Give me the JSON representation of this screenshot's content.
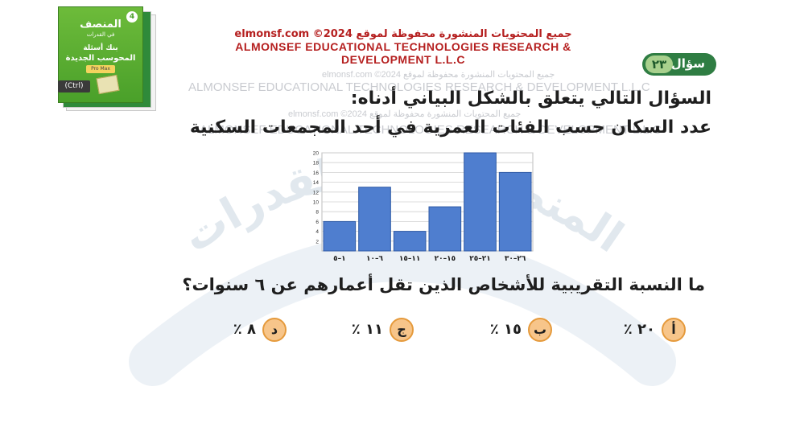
{
  "watermark": {
    "line1": "جميع المحتويات المنشورة محفوظة لموقع  elmonsf.com  ©2024",
    "line2": "ALMONSEF EDUCATIONAL TECHNOLOGIES RESEARCH & DEVELOPMENT L.L.C",
    "line3": "جميع المحتويات المنشورة محفوظة لموقع  elmonsf.com  ©2024",
    "line4": "ALMONSEF EDUCATIONAL TECHNOLOGIES RESEARCH & DEVELOPMENT L.L.C",
    "arc_text": "المنصف في القدرات"
  },
  "book": {
    "title": "المنصف",
    "subtitle": "في القدرات",
    "line3": "بنك أسئلة",
    "line4": "المحوسب الجديدة",
    "badge": "4",
    "ribbon": "Pro Max"
  },
  "ctrl_chip": "(Ctrl)",
  "header": {
    "line1": "جميع المحتويات المنشورة محفوظة لموقع  elmonsf.com  ©2024",
    "line2": "ALMONSEF EDUCATIONAL TECHNOLOGIES RESEARCH &",
    "line3": "DEVELOPMENT L.L.C"
  },
  "question_badge": {
    "label": "سؤال",
    "number": "٢٣"
  },
  "heading1": "السؤال التالي يتعلق بالشكل البياني أدناه:",
  "heading2": "عدد السكان حسب الفئات العمرية في أحد المجمعات السكنية",
  "question": "ما النسبة التقريبية للأشخاص الذين تقل أعمارهم عن ٦ سنوات؟",
  "options": [
    {
      "letter": "أ",
      "value": "٢٠ ٪"
    },
    {
      "letter": "ب",
      "value": "١٥ ٪"
    },
    {
      "letter": "ج",
      "value": "١١ ٪"
    },
    {
      "letter": "د",
      "value": "٨ ٪"
    }
  ],
  "colors": {
    "bar": "#4f7ecf",
    "bar_dark": "#2f5aa6",
    "badge": "#2f7d43",
    "option_circle": "#f7c58a"
  },
  "chart_data": {
    "type": "bar",
    "categories": [
      "١–٥",
      "٦–١٠",
      "١١–١٥",
      "١٥–٢٠",
      "٢١–٢٥",
      "٢٦–٣٠"
    ],
    "values": [
      6,
      13,
      4,
      9,
      20,
      16
    ],
    "ylim": [
      0,
      20
    ],
    "yticks": [
      2,
      4,
      6,
      8,
      10,
      12,
      14,
      16,
      18,
      20
    ],
    "grid": true,
    "title": "",
    "xlabel": "",
    "ylabel": ""
  }
}
